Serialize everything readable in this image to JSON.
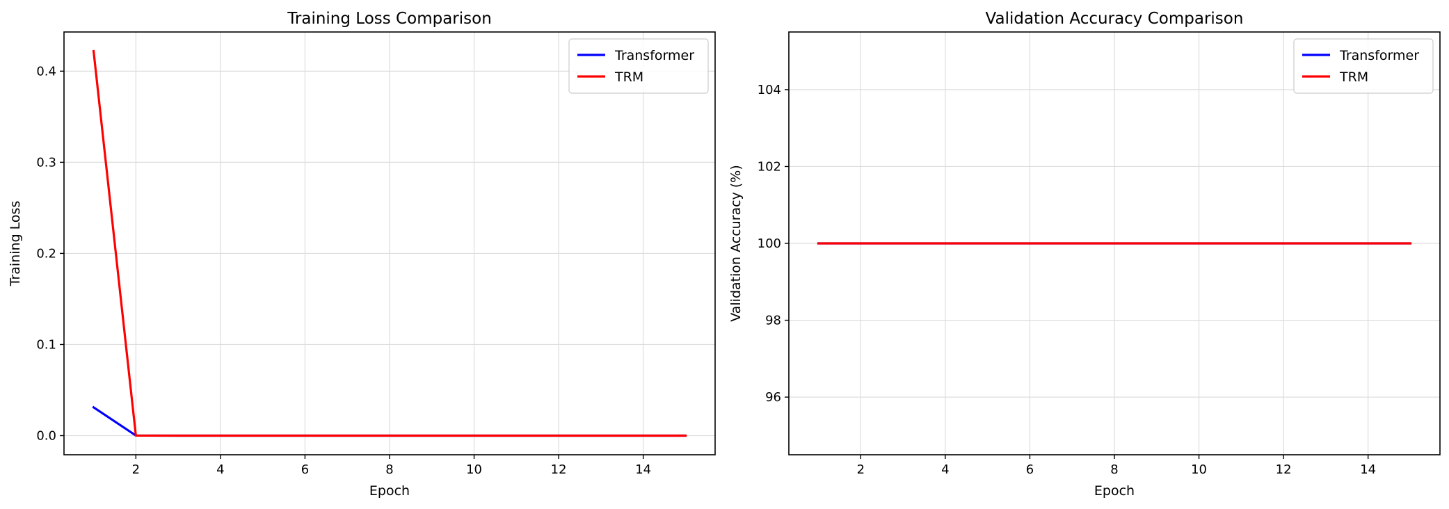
{
  "chart_data": [
    {
      "type": "line",
      "title": "Training Loss Comparison",
      "xlabel": "Epoch",
      "ylabel": "Training Loss",
      "xlim": [
        0.3,
        15.7
      ],
      "ylim": [
        -0.021,
        0.443
      ],
      "xticks": [
        2,
        4,
        6,
        8,
        10,
        12,
        14
      ],
      "yticks": [
        0.0,
        0.1,
        0.2,
        0.3,
        0.4
      ],
      "ytick_labels": [
        "0.0",
        "0.1",
        "0.2",
        "0.3",
        "0.4"
      ],
      "grid": true,
      "legend_position": "top-right",
      "series": [
        {
          "name": "Transformer",
          "color": "#0000ff",
          "x": [
            1,
            2,
            3,
            4,
            5,
            6,
            7,
            8,
            9,
            10,
            11,
            12,
            13,
            14,
            15
          ],
          "values": [
            0.031,
            0.0001,
            0.0,
            0.0,
            0.0,
            0.0,
            0.0,
            0.0,
            0.0,
            0.0,
            0.0,
            0.0,
            0.0,
            0.0,
            0.0
          ]
        },
        {
          "name": "TRM",
          "color": "#ff0000",
          "x": [
            1,
            2,
            3,
            4,
            5,
            6,
            7,
            8,
            9,
            10,
            11,
            12,
            13,
            14,
            15
          ],
          "values": [
            0.422,
            0.0001,
            0.0,
            0.0,
            0.0,
            0.0,
            0.0,
            0.0,
            0.0,
            0.0,
            0.0,
            0.0,
            0.0,
            0.0,
            0.0
          ]
        }
      ]
    },
    {
      "type": "line",
      "title": "Validation Accuracy Comparison",
      "xlabel": "Epoch",
      "ylabel": "Validation Accuracy (%)",
      "xlim": [
        0.3,
        15.7
      ],
      "ylim": [
        94.5,
        105.5
      ],
      "xticks": [
        2,
        4,
        6,
        8,
        10,
        12,
        14
      ],
      "yticks": [
        96,
        98,
        100,
        102,
        104
      ],
      "ytick_labels": [
        "96",
        "98",
        "100",
        "102",
        "104"
      ],
      "grid": true,
      "legend_position": "top-right",
      "series": [
        {
          "name": "Transformer",
          "color": "#0000ff",
          "x": [
            1,
            2,
            3,
            4,
            5,
            6,
            7,
            8,
            9,
            10,
            11,
            12,
            13,
            14,
            15
          ],
          "values": [
            100,
            100,
            100,
            100,
            100,
            100,
            100,
            100,
            100,
            100,
            100,
            100,
            100,
            100,
            100
          ]
        },
        {
          "name": "TRM",
          "color": "#ff0000",
          "x": [
            1,
            2,
            3,
            4,
            5,
            6,
            7,
            8,
            9,
            10,
            11,
            12,
            13,
            14,
            15
          ],
          "values": [
            100,
            100,
            100,
            100,
            100,
            100,
            100,
            100,
            100,
            100,
            100,
            100,
            100,
            100,
            100
          ]
        }
      ]
    }
  ]
}
